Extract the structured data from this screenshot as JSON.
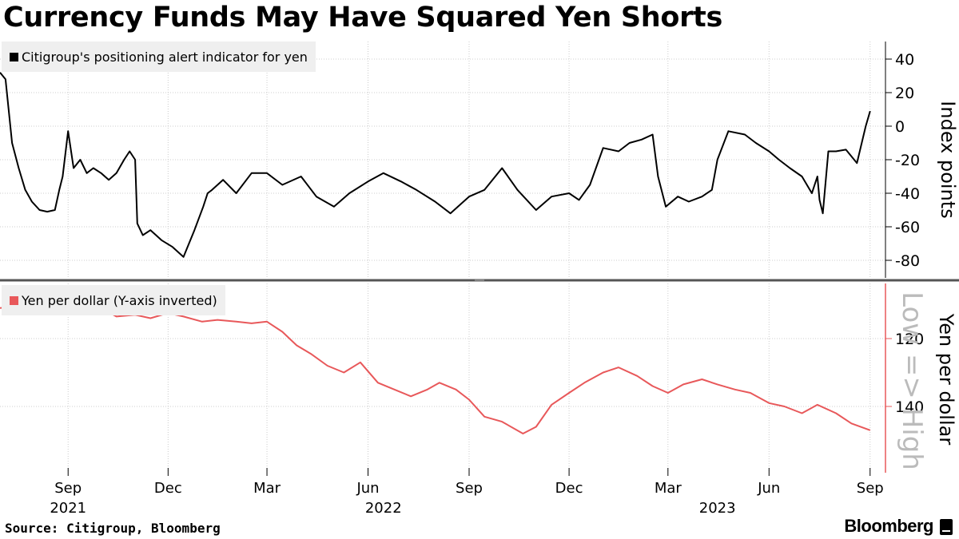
{
  "title": "Currency Funds May Have Squared Yen Shorts",
  "source": "Source: Citigroup, Bloomberg",
  "brand": "Bloomberg",
  "colors": {
    "indicator": "#000000",
    "yen": "#e8585a",
    "grid": "#cccccc",
    "legend_bg": "#efefef"
  },
  "chart_data": [
    {
      "type": "line",
      "title": "",
      "legend": [
        "Citigroup's positioning alert indicator for yen"
      ],
      "ylabel": "Index points",
      "ylim": [
        -90,
        50
      ],
      "y_ticks": [
        "40",
        "20",
        "0",
        "-20",
        "-40",
        "-60",
        "-80"
      ],
      "x_ticks": [
        "Sep",
        "Dec",
        "Mar",
        "Jun",
        "Sep",
        "Dec",
        "Mar",
        "Jun",
        "Sep"
      ],
      "x_years": [
        "2021",
        "2022",
        "2023"
      ],
      "grid": true,
      "series": [
        {
          "name": "Citigroup's positioning alert indicator for yen",
          "x": [
            "2021-07-01",
            "2021-07-06",
            "2021-07-12",
            "2021-07-18",
            "2021-07-24",
            "2021-07-30",
            "2021-08-06",
            "2021-08-13",
            "2021-08-20",
            "2021-08-24",
            "2021-08-27",
            "2021-09-01",
            "2021-09-06",
            "2021-09-12",
            "2021-09-18",
            "2021-09-24",
            "2021-10-01",
            "2021-10-08",
            "2021-10-15",
            "2021-10-22",
            "2021-10-27",
            "2021-11-01",
            "2021-11-03",
            "2021-11-08",
            "2021-11-15",
            "2021-11-25",
            "2021-12-05",
            "2021-12-15",
            "2021-12-25",
            "2022-01-02",
            "2022-01-06",
            "2022-01-10",
            "2022-01-20",
            "2022-02-01",
            "2022-02-15",
            "2022-03-01",
            "2022-03-15",
            "2022-04-01",
            "2022-04-15",
            "2022-05-01",
            "2022-05-15",
            "2022-06-01",
            "2022-06-15",
            "2022-07-01",
            "2022-07-15",
            "2022-08-01",
            "2022-08-15",
            "2022-09-01",
            "2022-09-15",
            "2022-10-01",
            "2022-10-15",
            "2022-11-01",
            "2022-11-15",
            "2022-12-01",
            "2022-12-10",
            "2022-12-20",
            "2023-01-01",
            "2023-01-15",
            "2023-01-25",
            "2023-02-05",
            "2023-02-15",
            "2023-02-20",
            "2023-02-27",
            "2023-03-10",
            "2023-03-20",
            "2023-04-01",
            "2023-04-10",
            "2023-04-15",
            "2023-04-25",
            "2023-05-10",
            "2023-05-20",
            "2023-06-01",
            "2023-06-10",
            "2023-06-20",
            "2023-07-01",
            "2023-07-10",
            "2023-07-15",
            "2023-07-17",
            "2023-07-20",
            "2023-07-25",
            "2023-08-01",
            "2023-08-10",
            "2023-08-20",
            "2023-08-28",
            "2023-09-01"
          ],
          "values": [
            32,
            28,
            -10,
            -25,
            -38,
            -45,
            -50,
            -51,
            -50,
            -38,
            -30,
            -3,
            -25,
            -20,
            -28,
            -25,
            -28,
            -32,
            -28,
            -20,
            -15,
            -20,
            -58,
            -65,
            -62,
            -68,
            -72,
            -78,
            -62,
            -48,
            -40,
            -38,
            -32,
            -40,
            -28,
            -28,
            -35,
            -30,
            -42,
            -48,
            -40,
            -33,
            -28,
            -33,
            -38,
            -45,
            -52,
            -42,
            -38,
            -25,
            -38,
            -50,
            -42,
            -40,
            -44,
            -35,
            -13,
            -15,
            -10,
            -8,
            -5,
            -30,
            -48,
            -42,
            -45,
            -42,
            -38,
            -20,
            -3,
            -5,
            -10,
            -15,
            -20,
            -25,
            -30,
            -40,
            -30,
            -44,
            -52,
            -15,
            -15,
            -14,
            -22,
            0,
            9
          ]
        }
      ]
    },
    {
      "type": "line",
      "title": "",
      "legend": [
        "Yen per dollar (Y-axis inverted)"
      ],
      "ylabel": "Yen per dollar",
      "annotation": "Low => High",
      "y_inverted": true,
      "ylim": [
        105,
        155
      ],
      "y_ticks": [
        "120",
        "140"
      ],
      "x_ticks": [
        "Sep",
        "Dec",
        "Mar",
        "Jun",
        "Sep",
        "Dec",
        "Mar",
        "Jun",
        "Sep"
      ],
      "x_years": [
        "2021",
        "2022",
        "2023"
      ],
      "grid": true,
      "series": [
        {
          "name": "Yen per dollar",
          "x": [
            "2021-07-01",
            "2021-07-15",
            "2021-08-01",
            "2021-08-15",
            "2021-09-01",
            "2021-09-15",
            "2021-10-01",
            "2021-10-15",
            "2021-11-01",
            "2021-11-15",
            "2021-12-01",
            "2021-12-15",
            "2022-01-01",
            "2022-01-15",
            "2022-02-01",
            "2022-02-15",
            "2022-03-01",
            "2022-03-15",
            "2022-03-28",
            "2022-04-10",
            "2022-04-25",
            "2022-05-10",
            "2022-05-25",
            "2022-06-10",
            "2022-06-25",
            "2022-07-10",
            "2022-07-25",
            "2022-08-05",
            "2022-08-20",
            "2022-09-01",
            "2022-09-15",
            "2022-10-01",
            "2022-10-20",
            "2022-11-01",
            "2022-11-15",
            "2022-12-01",
            "2022-12-15",
            "2023-01-01",
            "2023-01-15",
            "2023-02-01",
            "2023-02-15",
            "2023-03-01",
            "2023-03-15",
            "2023-04-01",
            "2023-04-15",
            "2023-05-01",
            "2023-05-15",
            "2023-06-01",
            "2023-06-15",
            "2023-07-01",
            "2023-07-15",
            "2023-08-01",
            "2023-08-15",
            "2023-09-01"
          ],
          "values": [
            111,
            110.5,
            111,
            110,
            110,
            109.5,
            111,
            113.5,
            113,
            114,
            112.5,
            113.5,
            115,
            114.5,
            115,
            115.5,
            115,
            118,
            122,
            124.5,
            128,
            130,
            127,
            133,
            135,
            137,
            135,
            133,
            135,
            138,
            143,
            144.5,
            148,
            146,
            139.5,
            136,
            133,
            130,
            128.5,
            131,
            134,
            136,
            133.5,
            132,
            133.5,
            135,
            136,
            139,
            140,
            142,
            139.5,
            142,
            145,
            147
          ]
        }
      ]
    }
  ]
}
